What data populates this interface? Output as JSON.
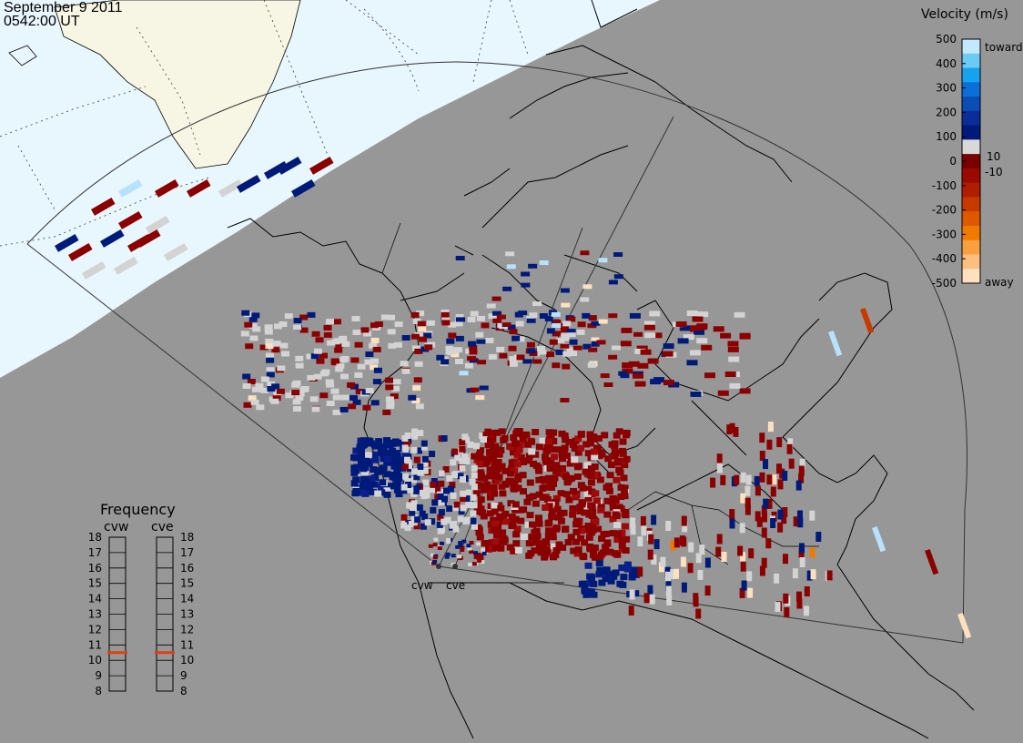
{
  "title": {
    "date": "September  9 2011",
    "time": "0542:00 UT"
  },
  "velocity_scale": {
    "title": "Velocity (m/s)",
    "ticks": [
      "500",
      "400",
      "300",
      "200",
      "100",
      "0",
      "-100",
      "-200",
      "-300",
      "-400",
      "-500"
    ],
    "toward_label": "toward",
    "away_label": "away",
    "pos_threshold": "10",
    "neg_threshold": "-10",
    "colors": [
      "#c2e9ff",
      "#6ccbf5",
      "#17a2f0",
      "#0a6fd8",
      "#0c4db4",
      "#0b2d98",
      "#001a7a",
      "#d8d8d8",
      "#7a0000",
      "#9a0a00",
      "#b01e00",
      "#c63a00",
      "#de5800",
      "#f07a00",
      "#f8a040",
      "#fbc080",
      "#fde0c0"
    ]
  },
  "frequency_panel": {
    "title": "Frequency",
    "radars": [
      "cvw",
      "cve"
    ],
    "ticks": [
      "18",
      "17",
      "16",
      "15",
      "14",
      "13",
      "12",
      "11",
      "10",
      "9",
      "8"
    ],
    "values_mhz": [
      10.5,
      10.5
    ],
    "marker_color": "#e04010"
  },
  "radar_sites": [
    {
      "name": "cvw"
    },
    {
      "name": "cve"
    }
  ],
  "map": {
    "land_color": "#979797",
    "daylight_sea_color": "#e6f5fc",
    "daylight_land_color": "#f7f6e5",
    "grid_color": "#333333"
  }
}
